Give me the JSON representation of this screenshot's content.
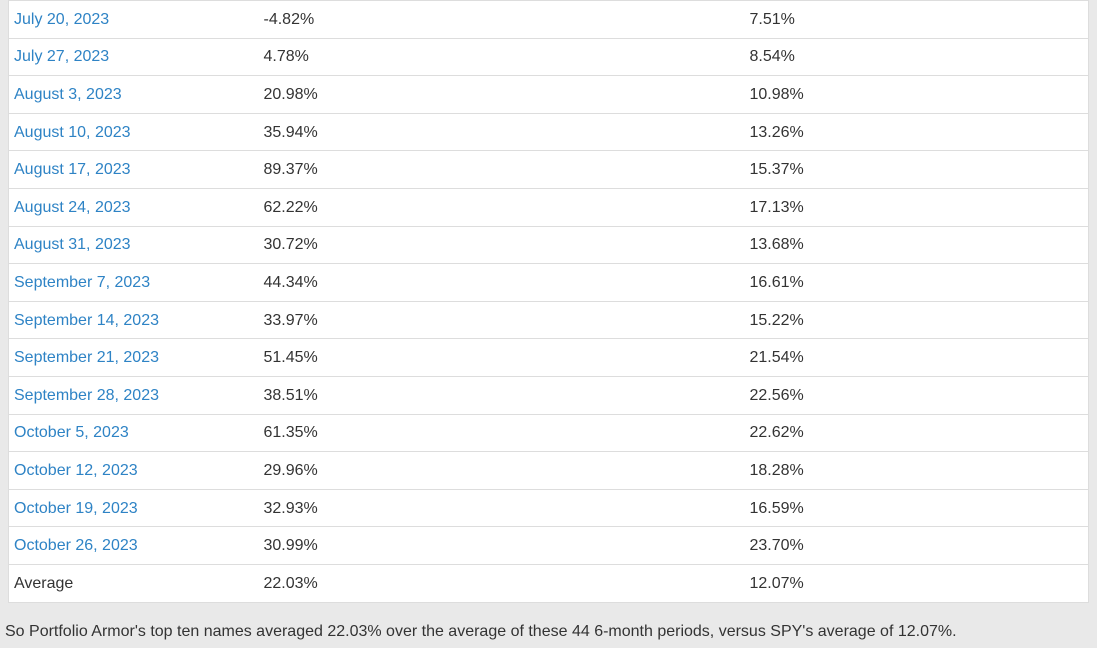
{
  "colors": {
    "page_background": "#e9e9e9",
    "table_background": "#ffffff",
    "border": "#dddddd",
    "link": "#2e83c5",
    "text": "#333333"
  },
  "table": {
    "columns": [
      "date",
      "portfolio_armor_return",
      "spy_return"
    ],
    "rows": [
      {
        "date": "July 20, 2023",
        "portfolio": "-4.82%",
        "spy": "7.51%",
        "is_link": true
      },
      {
        "date": "July 27, 2023",
        "portfolio": "4.78%",
        "spy": "8.54%",
        "is_link": true
      },
      {
        "date": "August 3, 2023",
        "portfolio": "20.98%",
        "spy": "10.98%",
        "is_link": true
      },
      {
        "date": "August 10, 2023",
        "portfolio": "35.94%",
        "spy": "13.26%",
        "is_link": true
      },
      {
        "date": "August 17, 2023",
        "portfolio": "89.37%",
        "spy": "15.37%",
        "is_link": true
      },
      {
        "date": "August 24, 2023",
        "portfolio": "62.22%",
        "spy": "17.13%",
        "is_link": true
      },
      {
        "date": "August 31, 2023",
        "portfolio": "30.72%",
        "spy": "13.68%",
        "is_link": true
      },
      {
        "date": "September 7, 2023",
        "portfolio": "44.34%",
        "spy": "16.61%",
        "is_link": true
      },
      {
        "date": "September 14, 2023",
        "portfolio": "33.97%",
        "spy": "15.22%",
        "is_link": true
      },
      {
        "date": "September 21, 2023",
        "portfolio": "51.45%",
        "spy": "21.54%",
        "is_link": true
      },
      {
        "date": "September 28, 2023",
        "portfolio": "38.51%",
        "spy": "22.56%",
        "is_link": true
      },
      {
        "date": "October 5, 2023",
        "portfolio": "61.35%",
        "spy": "22.62%",
        "is_link": true
      },
      {
        "date": "October 12, 2023",
        "portfolio": "29.96%",
        "spy": "18.28%",
        "is_link": true
      },
      {
        "date": "October 19, 2023",
        "portfolio": "32.93%",
        "spy": "16.59%",
        "is_link": true
      },
      {
        "date": "October 26, 2023",
        "portfolio": "30.99%",
        "spy": "23.70%",
        "is_link": true
      },
      {
        "date": "Average",
        "portfolio": "22.03%",
        "spy": "12.07%",
        "is_link": false
      }
    ]
  },
  "footer": {
    "text": "So Portfolio Armor's top ten names averaged 22.03% over the average of these 44 6-month periods, versus SPY's average of 12.07%."
  }
}
